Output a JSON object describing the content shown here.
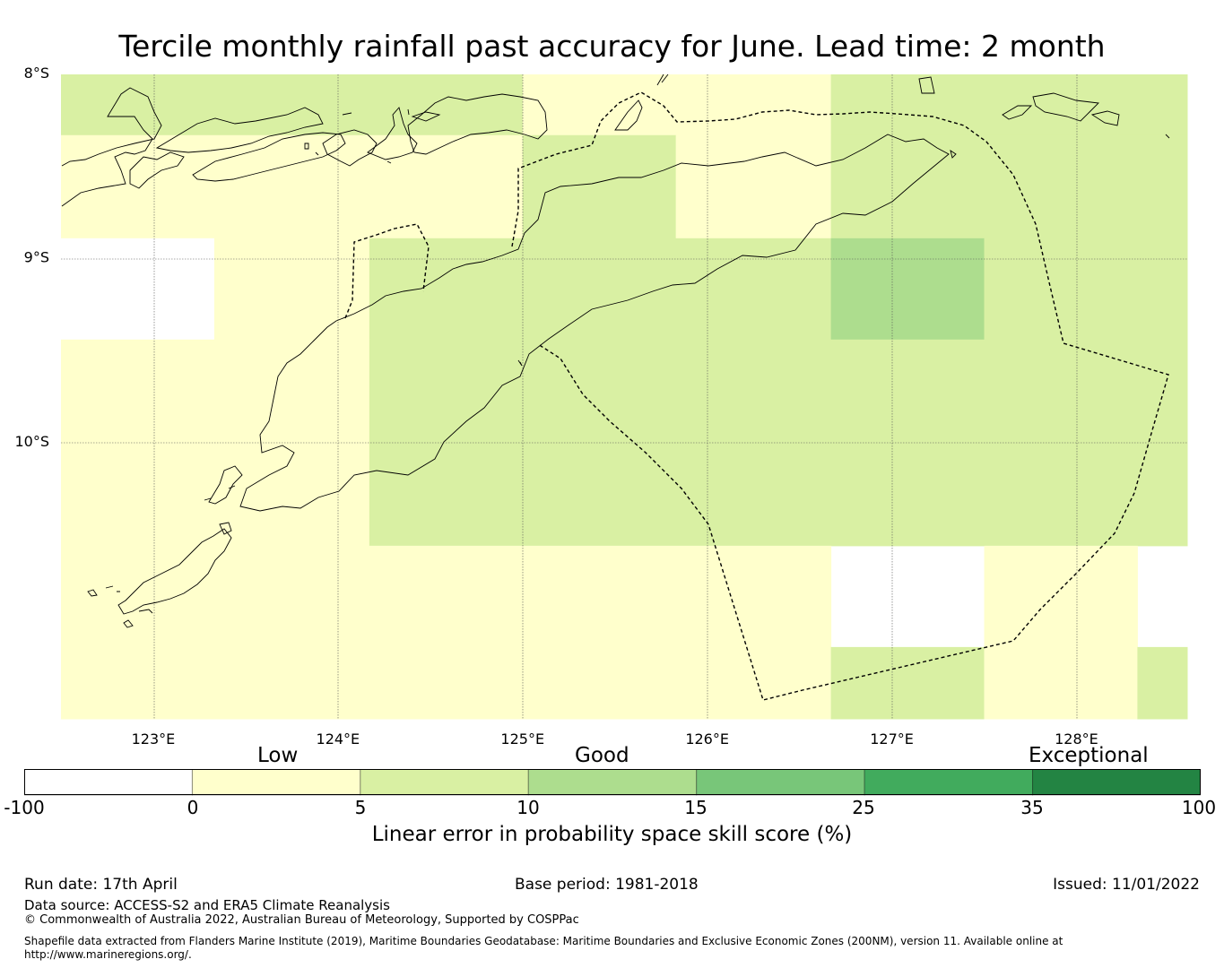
{
  "title": "Tercile monthly rainfall past accuracy for June. Lead time: 2 month",
  "map": {
    "lon_ticks": [
      "123°E",
      "124°E",
      "125°E",
      "126°E",
      "127°E",
      "128°E"
    ],
    "lat_ticks": [
      "8°S",
      "9°S",
      "10°S"
    ],
    "extent": {
      "lon_min": 122.5,
      "lon_max": 128.6,
      "lat_max": -8.0,
      "lat_min": -11.5
    },
    "cells": [
      {
        "lon": [
          122.5,
          125.0
        ],
        "lat": [
          -8.0,
          -8.33
        ],
        "score_band": "5-10"
      },
      {
        "lon": [
          125.0,
          126.67
        ],
        "lat": [
          -8.0,
          -8.33
        ],
        "score_band": "0-5"
      },
      {
        "lon": [
          126.67,
          128.6
        ],
        "lat": [
          -8.0,
          -8.33
        ],
        "score_band": "5-10"
      },
      {
        "lon": [
          122.5,
          125.0
        ],
        "lat": [
          -8.33,
          -8.89
        ],
        "score_band": "0-5"
      },
      {
        "lon": [
          125.0,
          125.83
        ],
        "lat": [
          -8.33,
          -8.89
        ],
        "score_band": "5-10"
      },
      {
        "lon": [
          125.83,
          126.67
        ],
        "lat": [
          -8.33,
          -8.89
        ],
        "score_band": "0-5"
      },
      {
        "lon": [
          126.67,
          128.6
        ],
        "lat": [
          -8.33,
          -8.89
        ],
        "score_band": "5-10"
      },
      {
        "lon": [
          122.5,
          123.33
        ],
        "lat": [
          -8.89,
          -9.44
        ],
        "score_band": "-100-0"
      },
      {
        "lon": [
          123.33,
          124.17
        ],
        "lat": [
          -8.89,
          -9.44
        ],
        "score_band": "0-5"
      },
      {
        "lon": [
          124.17,
          126.67
        ],
        "lat": [
          -8.89,
          -9.44
        ],
        "score_band": "5-10"
      },
      {
        "lon": [
          126.67,
          127.5
        ],
        "lat": [
          -8.89,
          -9.44
        ],
        "score_band": "10-15"
      },
      {
        "lon": [
          127.5,
          128.6
        ],
        "lat": [
          -8.89,
          -9.44
        ],
        "score_band": "5-10"
      },
      {
        "lon": [
          122.5,
          124.17
        ],
        "lat": [
          -9.44,
          -10.56
        ],
        "score_band": "0-5"
      },
      {
        "lon": [
          124.17,
          128.6
        ],
        "lat": [
          -9.44,
          -10.56
        ],
        "score_band": "5-10"
      },
      {
        "lon": [
          122.5,
          126.67
        ],
        "lat": [
          -10.56,
          -11.5
        ],
        "score_band": "0-5"
      },
      {
        "lon": [
          126.67,
          127.5
        ],
        "lat": [
          -11.11,
          -11.5
        ],
        "score_band": "5-10"
      },
      {
        "lon": [
          127.5,
          128.33
        ],
        "lat": [
          -10.56,
          -11.5
        ],
        "score_band": "0-5"
      },
      {
        "lon": [
          128.33,
          128.6
        ],
        "lat": [
          -11.11,
          -11.5
        ],
        "score_band": "5-10"
      }
    ],
    "features": [
      "coastline",
      "maritime-boundary-dashed",
      "graticule"
    ]
  },
  "colorbar": {
    "categories": [
      "Low",
      "Good",
      "Exceptional"
    ],
    "ticks": [
      "-100",
      "0",
      "5",
      "10",
      "15",
      "25",
      "35",
      "100"
    ],
    "colors": [
      "#ffffff",
      "#ffffcc",
      "#d9f0a3",
      "#addd8e",
      "#78c679",
      "#41ab5d",
      "#238443"
    ],
    "label": "Linear error in probability space skill score (%)"
  },
  "footer": {
    "run_date": "Run date: 17th April",
    "base_period": "Base period: 1981-2018",
    "issued": "Issued: 11/01/2022",
    "data_source": "Data source: ACCESS-S2 and ERA5 Climate Reanalysis",
    "copyright": "© Commonwealth of Australia 2022, Australian Bureau of Meteorology, Supported by COSPPac",
    "shapefile_line1": "Shapefile data extracted from Flanders Marine Institute (2019), Maritime Boundaries Geodatabase: Maritime Boundaries and Exclusive Economic Zones (200NM), version 11. Available online at",
    "shapefile_line2": "http://www.marineregions.org/."
  }
}
